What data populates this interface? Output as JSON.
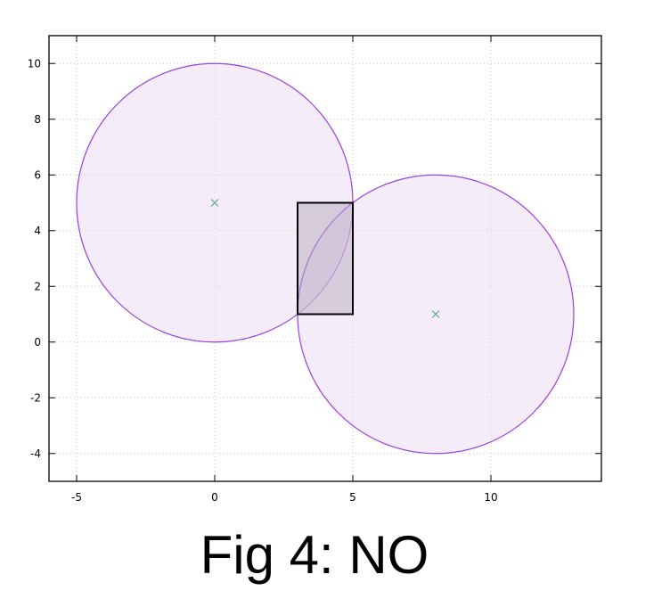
{
  "caption": "Fig 4: NO",
  "chart_data": {
    "type": "scatter",
    "title": "",
    "xlabel": "",
    "ylabel": "",
    "xlim": [
      -6,
      14
    ],
    "ylim": [
      -5,
      11
    ],
    "grid": true,
    "x_ticks": [
      -5,
      0,
      5,
      10
    ],
    "y_ticks": [
      -4,
      -2,
      0,
      2,
      4,
      6,
      8,
      10
    ],
    "circles": [
      {
        "center": [
          0,
          5
        ],
        "radius": 5
      },
      {
        "center": [
          8,
          1
        ],
        "radius": 5
      }
    ],
    "rectangle": {
      "x_min": 3,
      "x_max": 5,
      "y_min": 1,
      "y_max": 5
    },
    "points": [
      {
        "x": 0,
        "y": 5,
        "marker": "x"
      },
      {
        "x": 8,
        "y": 1,
        "marker": "x"
      }
    ],
    "colors": {
      "circle_stroke": "#9a40e0",
      "circle_fill": "#f6eefa",
      "rect_fill": "#dcd4de",
      "rect_stroke": "#000000",
      "marker": "#5aa8a0",
      "grid": "#c8c8c8"
    }
  }
}
